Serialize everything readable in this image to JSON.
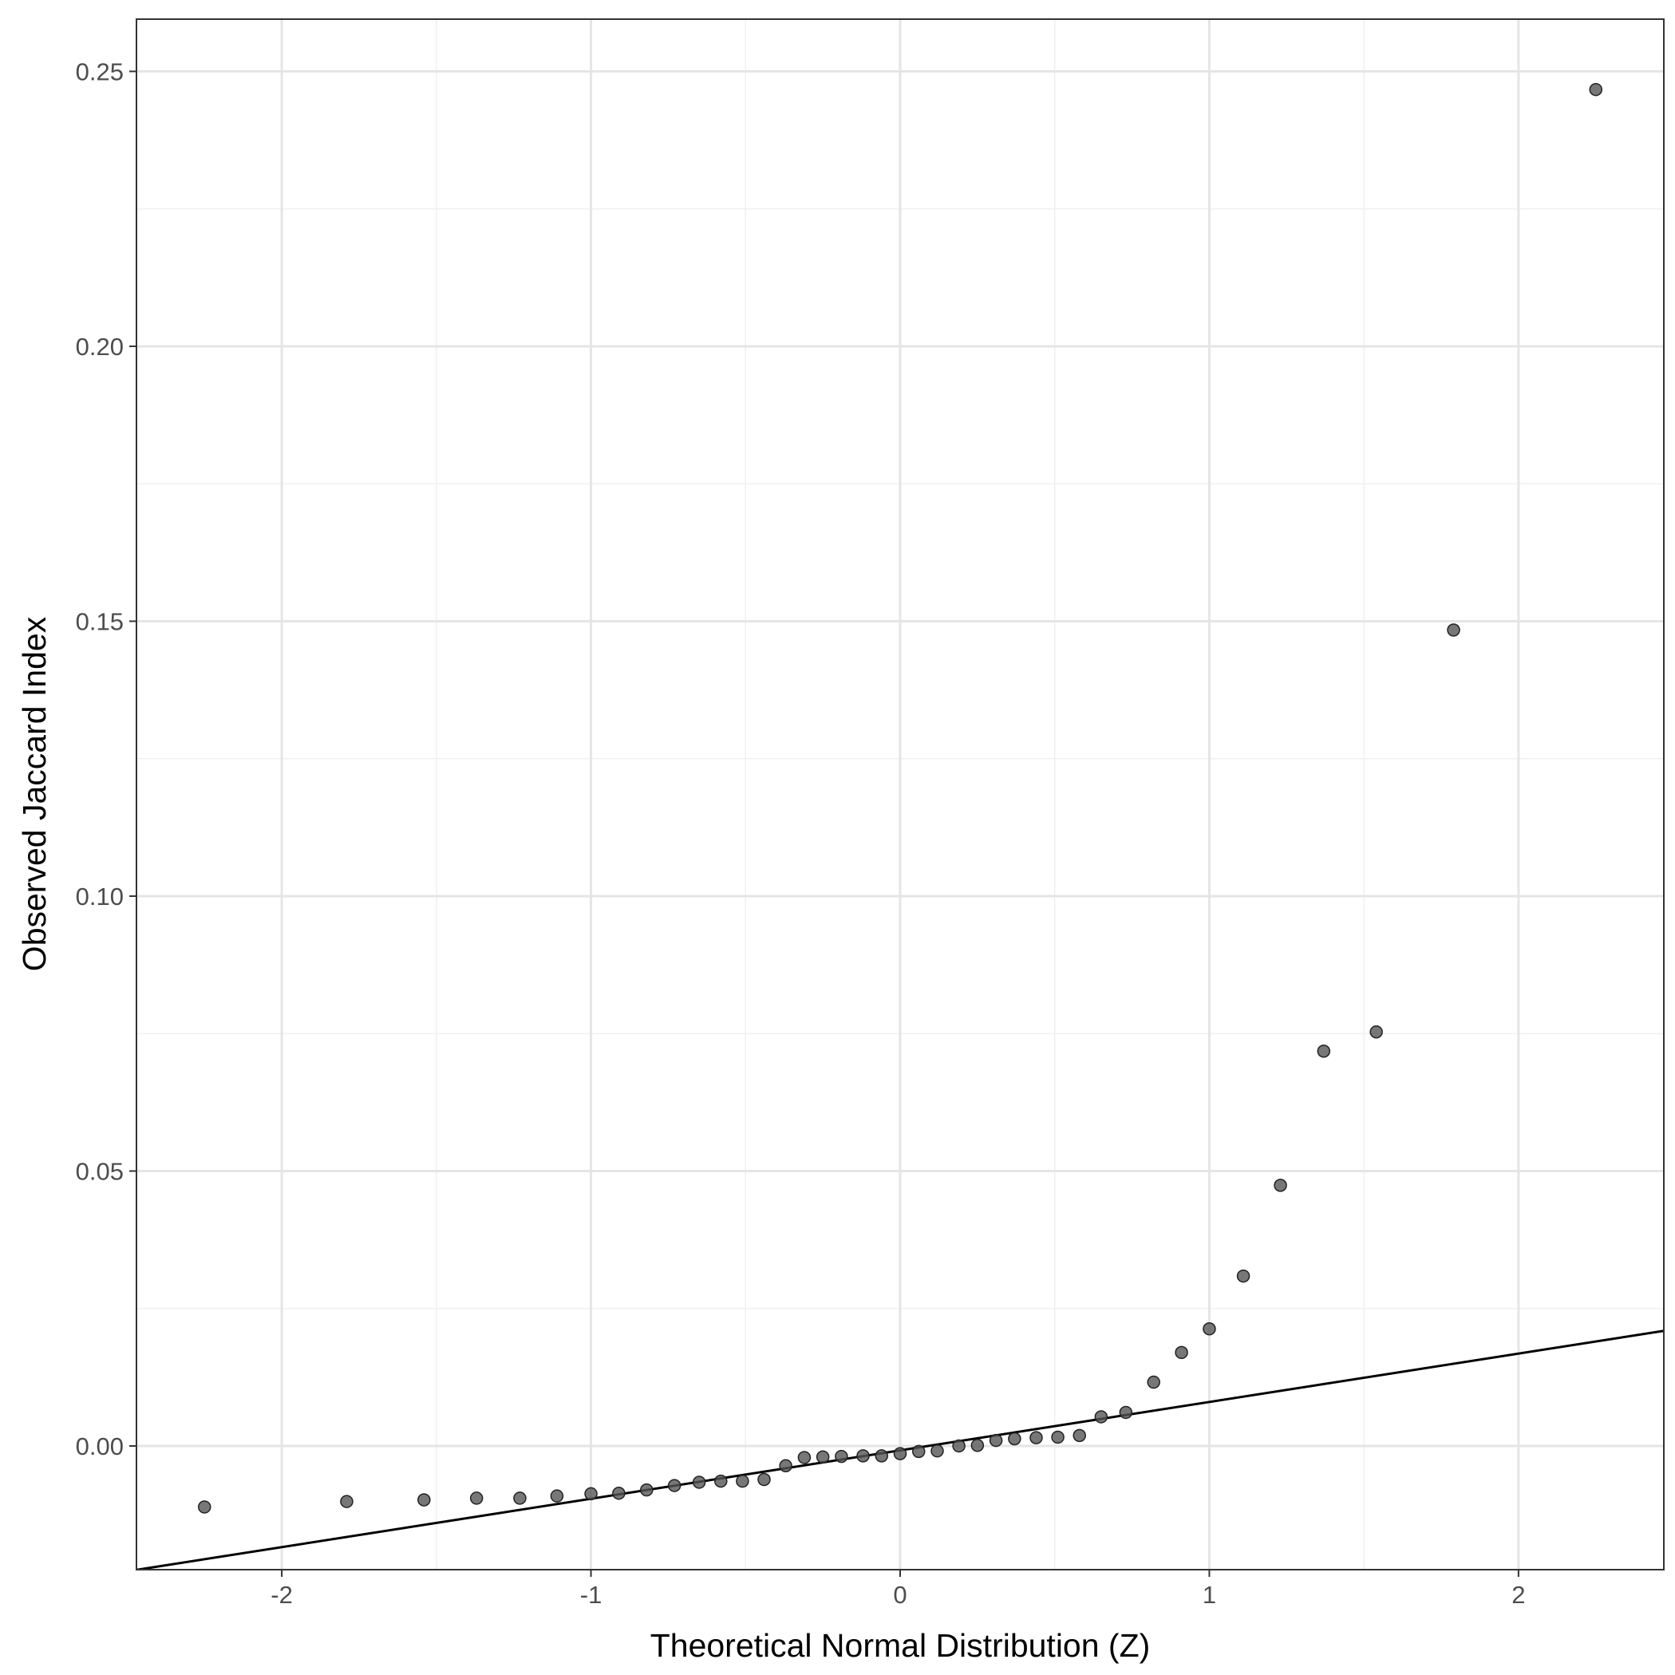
{
  "chart_data": {
    "type": "scatter",
    "xlabel": "Theoretical Normal Distribution (Z)",
    "ylabel": "Observed Jaccard Index",
    "xlim": [
      -2.47,
      2.47
    ],
    "ylim": [
      -0.0225,
      0.2595
    ],
    "x_ticks": [
      {
        "value": -2,
        "label": "-2"
      },
      {
        "value": -1,
        "label": "-1"
      },
      {
        "value": 0,
        "label": "0"
      },
      {
        "value": 1,
        "label": "1"
      },
      {
        "value": 2,
        "label": "2"
      }
    ],
    "y_ticks": [
      {
        "value": 0.0,
        "label": "0.00"
      },
      {
        "value": 0.05,
        "label": "0.05"
      },
      {
        "value": 0.1,
        "label": "0.10"
      },
      {
        "value": 0.15,
        "label": "0.15"
      },
      {
        "value": 0.2,
        "label": "0.20"
      },
      {
        "value": 0.25,
        "label": "0.25"
      }
    ],
    "grid": true,
    "point_color": "#555555",
    "series": [
      {
        "points": [
          {
            "x": -2.25,
            "y": -0.0111
          },
          {
            "x": -1.79,
            "y": -0.0101
          },
          {
            "x": -1.54,
            "y": -0.0098
          },
          {
            "x": -1.37,
            "y": -0.0095
          },
          {
            "x": -1.23,
            "y": -0.0095
          },
          {
            "x": -1.11,
            "y": -0.0091
          },
          {
            "x": -1.0,
            "y": -0.0087
          },
          {
            "x": -0.91,
            "y": -0.0086
          },
          {
            "x": -0.82,
            "y": -0.008
          },
          {
            "x": -0.73,
            "y": -0.0072
          },
          {
            "x": -0.65,
            "y": -0.0066
          },
          {
            "x": -0.58,
            "y": -0.0064
          },
          {
            "x": -0.51,
            "y": -0.0064
          },
          {
            "x": -0.44,
            "y": -0.0061
          },
          {
            "x": -0.37,
            "y": -0.0036
          },
          {
            "x": -0.31,
            "y": -0.0021
          },
          {
            "x": -0.25,
            "y": -0.002
          },
          {
            "x": -0.19,
            "y": -0.0019
          },
          {
            "x": -0.12,
            "y": -0.0018
          },
          {
            "x": -0.06,
            "y": -0.0018
          },
          {
            "x": 0.0,
            "y": -0.0014
          },
          {
            "x": 0.06,
            "y": -0.001
          },
          {
            "x": 0.12,
            "y": -0.0009
          },
          {
            "x": 0.19,
            "y": 0.0
          },
          {
            "x": 0.25,
            "y": 0.0001
          },
          {
            "x": 0.31,
            "y": 0.001
          },
          {
            "x": 0.37,
            "y": 0.0013
          },
          {
            "x": 0.44,
            "y": 0.0015
          },
          {
            "x": 0.51,
            "y": 0.0016
          },
          {
            "x": 0.58,
            "y": 0.0019
          },
          {
            "x": 0.65,
            "y": 0.0053
          },
          {
            "x": 0.73,
            "y": 0.0061
          },
          {
            "x": 0.82,
            "y": 0.0116
          },
          {
            "x": 0.91,
            "y": 0.017
          },
          {
            "x": 1.0,
            "y": 0.0213
          },
          {
            "x": 1.11,
            "y": 0.0309
          },
          {
            "x": 1.23,
            "y": 0.0474
          },
          {
            "x": 1.37,
            "y": 0.0718
          },
          {
            "x": 1.54,
            "y": 0.0753
          },
          {
            "x": 1.79,
            "y": 0.1484
          },
          {
            "x": 2.25,
            "y": 0.2467
          }
        ]
      }
    ],
    "reference_line": {
      "intercept": -0.0008,
      "slope": 0.0088,
      "color": "#000000"
    }
  }
}
